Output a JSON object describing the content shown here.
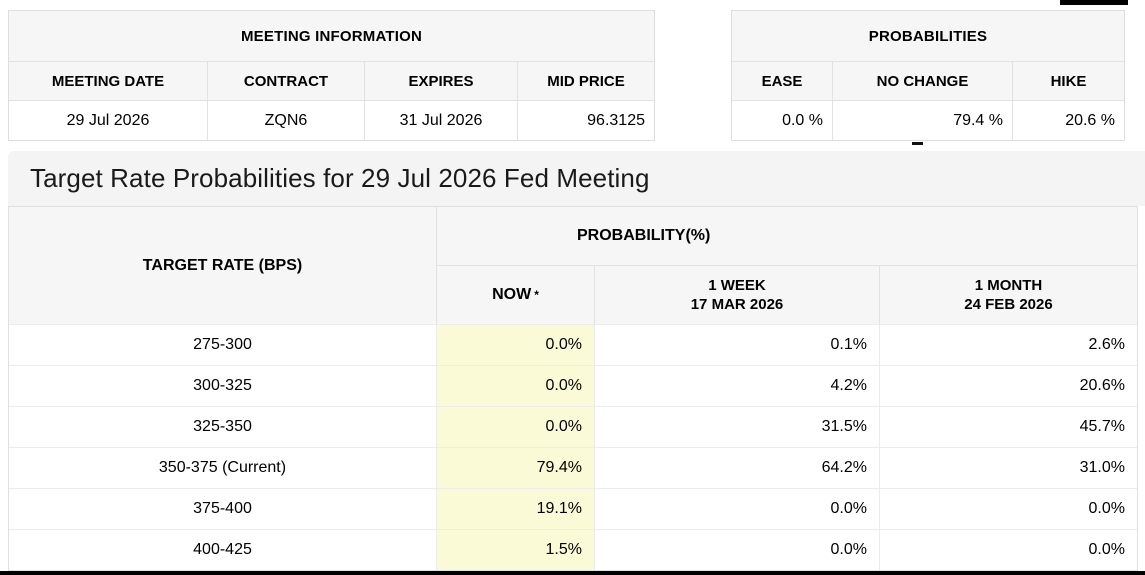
{
  "meeting_information": {
    "title": "MEETING INFORMATION",
    "headers": [
      "MEETING DATE",
      "CONTRACT",
      "EXPIRES",
      "MID PRICE"
    ],
    "values": {
      "meeting_date": "29 Jul 2026",
      "contract": "ZQN6",
      "expires": "31 Jul 2026",
      "mid_price": "96.3125"
    }
  },
  "probabilities": {
    "title": "PROBABILITIES",
    "headers": [
      "EASE",
      "NO CHANGE",
      "HIKE"
    ],
    "values": {
      "ease": "0.0 %",
      "no_change": "79.4 %",
      "hike": "20.6 %"
    }
  },
  "section_title": "Target Rate Probabilities for 29 Jul 2026 Fed Meeting",
  "target_rate_table": {
    "rate_header": "TARGET RATE (BPS)",
    "probability_header": "PROBABILITY(%)",
    "col_now": {
      "label": "NOW",
      "asterisk": "*"
    },
    "col_week": {
      "label": "1 WEEK",
      "date": "17 MAR 2026"
    },
    "col_month": {
      "label": "1 MONTH",
      "date": "24 FEB 2026"
    },
    "rows": [
      {
        "rate": "275-300",
        "now": "0.0%",
        "week": "0.1%",
        "month": "2.6%"
      },
      {
        "rate": "300-325",
        "now": "0.0%",
        "week": "4.2%",
        "month": "20.6%"
      },
      {
        "rate": "325-350",
        "now": "0.0%",
        "week": "31.5%",
        "month": "45.7%"
      },
      {
        "rate": "350-375 (Current)",
        "now": "79.4%",
        "week": "64.2%",
        "month": "31.0%"
      },
      {
        "rate": "375-400",
        "now": "19.1%",
        "week": "0.0%",
        "month": "0.0%"
      },
      {
        "rate": "400-425",
        "now": "1.5%",
        "week": "0.0%",
        "month": "0.0%"
      }
    ]
  },
  "colors": {
    "now_column_highlight": "#fafad6",
    "header_background": "#f6f6f6",
    "title_band_background": "#f4f4f4",
    "edge_bar": "#000000"
  }
}
